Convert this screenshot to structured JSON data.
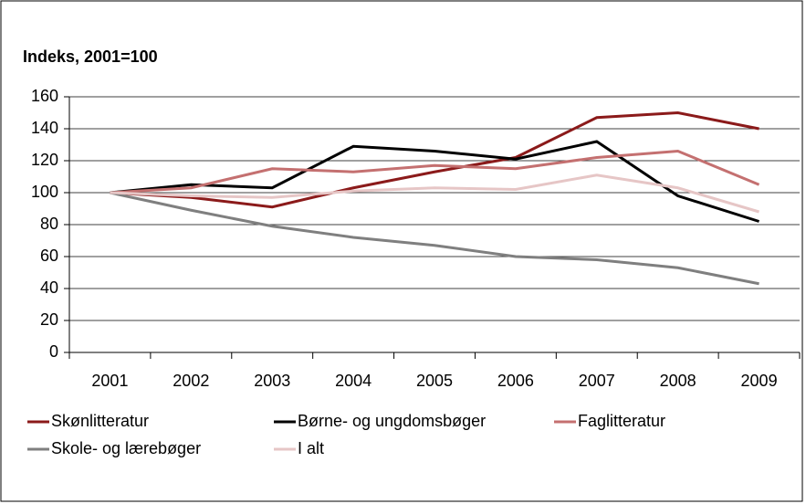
{
  "chart_data": {
    "type": "line",
    "title": "Indeks, 2001=100",
    "categories": [
      "2001",
      "2002",
      "2003",
      "2004",
      "2005",
      "2006",
      "2007",
      "2008",
      "2009"
    ],
    "series": [
      {
        "name": "Skønlitteratur",
        "color": "#8b1a1a",
        "values": [
          100,
          97,
          91,
          103,
          113,
          122,
          147,
          150,
          140
        ]
      },
      {
        "name": "Børne- og ungdomsbøger",
        "color": "#000000",
        "values": [
          100,
          105,
          103,
          129,
          126,
          121,
          132,
          98,
          82
        ]
      },
      {
        "name": "Faglitteratur",
        "color": "#c47070",
        "values": [
          100,
          103,
          115,
          113,
          117,
          115,
          122,
          126,
          105
        ]
      },
      {
        "name": "Skole- og lærebøger",
        "color": "#7f7f7f",
        "values": [
          100,
          89,
          79,
          72,
          67,
          60,
          58,
          53,
          43
        ]
      },
      {
        "name": "I alt",
        "color": "#e6c6c6",
        "values": [
          100,
          98,
          97,
          101,
          103,
          102,
          111,
          103,
          88
        ]
      }
    ],
    "ylim": [
      0,
      160
    ],
    "yticks": [
      0,
      20,
      40,
      60,
      80,
      100,
      120,
      140,
      160
    ],
    "grid": true,
    "legend": "bottom"
  }
}
